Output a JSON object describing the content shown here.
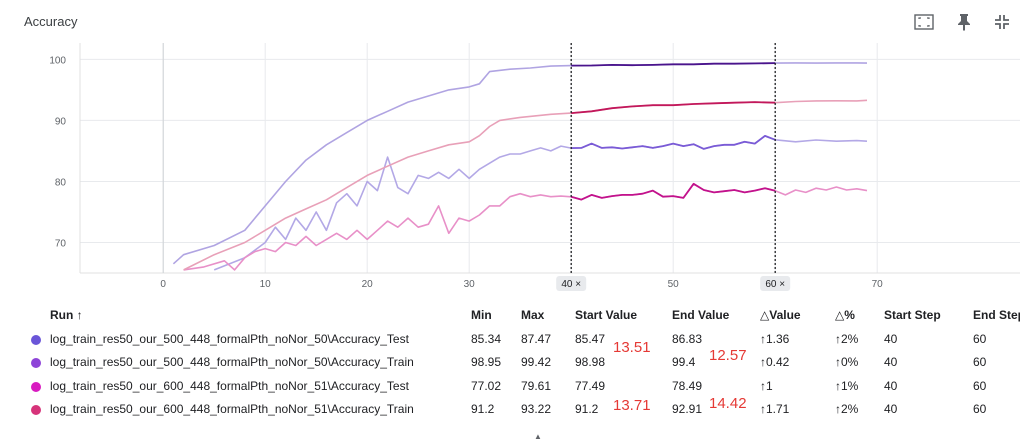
{
  "card": {
    "title": "Accuracy"
  },
  "toolbar": {
    "icons": [
      "fit-domain-icon",
      "pin-icon",
      "collapse-icon"
    ]
  },
  "chart_data": {
    "type": "line",
    "title": "",
    "xlabel": "",
    "ylabel": "",
    "xlim": [
      -16,
      84
    ],
    "ylim": [
      65,
      104
    ],
    "x_ticks": [
      0,
      10,
      20,
      30,
      40,
      50,
      60,
      70
    ],
    "y_ticks": [
      70,
      80,
      90,
      100
    ],
    "highlighted_x_ticks": [
      {
        "value": 40,
        "label": "40 ×"
      },
      {
        "value": 60,
        "label": "60 ×"
      }
    ],
    "range_selection": [
      40,
      60
    ],
    "series": [
      {
        "name": "log_train_res50_our_500_448_formalPth_noNor_50\\Accuracy_Test",
        "color": "#7a5bd6",
        "faded_color": "#b3a8e6",
        "points": [
          [
            5,
            65.5
          ],
          [
            8,
            67.5
          ],
          [
            10,
            70
          ],
          [
            11,
            72.5
          ],
          [
            12,
            70.5
          ],
          [
            13,
            74
          ],
          [
            14,
            72
          ],
          [
            15,
            75
          ],
          [
            16,
            72
          ],
          [
            17,
            76.5
          ],
          [
            18,
            78
          ],
          [
            19,
            76
          ],
          [
            20,
            80
          ],
          [
            21,
            78.5
          ],
          [
            22,
            84
          ],
          [
            23,
            79
          ],
          [
            24,
            78
          ],
          [
            25,
            81
          ],
          [
            26,
            80.5
          ],
          [
            27,
            81.5
          ],
          [
            28,
            80.5
          ],
          [
            29,
            82
          ],
          [
            30,
            80.5
          ],
          [
            31,
            82
          ],
          [
            32,
            83
          ],
          [
            33,
            84
          ],
          [
            34,
            84.5
          ],
          [
            35,
            84.5
          ],
          [
            36,
            85
          ],
          [
            37,
            85.5
          ],
          [
            38,
            85
          ],
          [
            39,
            85.8
          ],
          [
            40,
            85.47
          ],
          [
            41,
            85.5
          ],
          [
            42,
            86.2
          ],
          [
            43,
            85.5
          ],
          [
            44,
            85.6
          ],
          [
            45,
            85.4
          ],
          [
            46,
            85.6
          ],
          [
            47,
            85.8
          ],
          [
            48,
            85.5
          ],
          [
            49,
            85.8
          ],
          [
            50,
            86.2
          ],
          [
            51,
            85.8
          ],
          [
            52,
            86.1
          ],
          [
            53,
            85.34
          ],
          [
            54,
            85.8
          ],
          [
            55,
            86
          ],
          [
            56,
            86
          ],
          [
            57,
            86.5
          ],
          [
            58,
            86.2
          ],
          [
            59,
            87.47
          ],
          [
            60,
            86.83
          ],
          [
            62,
            86.5
          ],
          [
            64,
            86.8
          ],
          [
            66,
            86.6
          ],
          [
            68,
            86.7
          ],
          [
            69,
            86.6
          ]
        ]
      },
      {
        "name": "log_train_res50_our_500_448_formalPth_noNor_50\\Accuracy_Train",
        "color": "#4a148c",
        "faded_color": "#b0a4e2",
        "points": [
          [
            1,
            66.5
          ],
          [
            2,
            68
          ],
          [
            5,
            69.5
          ],
          [
            8,
            72
          ],
          [
            10,
            76
          ],
          [
            12,
            80
          ],
          [
            14,
            83.5
          ],
          [
            16,
            86
          ],
          [
            18,
            88
          ],
          [
            20,
            90
          ],
          [
            22,
            91.5
          ],
          [
            24,
            93
          ],
          [
            26,
            94
          ],
          [
            28,
            95
          ],
          [
            30,
            95.5
          ],
          [
            31,
            96
          ],
          [
            32,
            98
          ],
          [
            34,
            98.4
          ],
          [
            36,
            98.6
          ],
          [
            38,
            98.9
          ],
          [
            40,
            98.98
          ],
          [
            42,
            99
          ],
          [
            44,
            99.1
          ],
          [
            46,
            99.05
          ],
          [
            48,
            99.1
          ],
          [
            50,
            99.2
          ],
          [
            52,
            99.2
          ],
          [
            54,
            99.3
          ],
          [
            56,
            99.3
          ],
          [
            58,
            99.35
          ],
          [
            60,
            99.4
          ],
          [
            62,
            99.42
          ],
          [
            64,
            99.4
          ],
          [
            66,
            99.42
          ],
          [
            68,
            99.42
          ],
          [
            69,
            99.4
          ]
        ]
      },
      {
        "name": "log_train_res50_our_600_448_formalPth_noNor_51\\Accuracy_Test",
        "color": "#c2128c",
        "faded_color": "#e890c8",
        "points": [
          [
            2,
            65.5
          ],
          [
            4,
            66
          ],
          [
            6,
            67
          ],
          [
            7,
            65.5
          ],
          [
            8,
            67.5
          ],
          [
            9,
            68.5
          ],
          [
            10,
            69
          ],
          [
            11,
            68.5
          ],
          [
            12,
            70
          ],
          [
            13,
            69.5
          ],
          [
            14,
            71
          ],
          [
            15,
            69.5
          ],
          [
            16,
            70.5
          ],
          [
            17,
            71.5
          ],
          [
            18,
            70.5
          ],
          [
            19,
            72
          ],
          [
            20,
            70.5
          ],
          [
            21,
            72
          ],
          [
            22,
            73.5
          ],
          [
            23,
            72.5
          ],
          [
            24,
            74
          ],
          [
            25,
            72.5
          ],
          [
            26,
            73
          ],
          [
            27,
            76
          ],
          [
            28,
            71.5
          ],
          [
            29,
            74
          ],
          [
            30,
            73.5
          ],
          [
            31,
            74.5
          ],
          [
            32,
            76
          ],
          [
            33,
            76
          ],
          [
            34,
            77.5
          ],
          [
            35,
            78
          ],
          [
            36,
            77.5
          ],
          [
            37,
            77.8
          ],
          [
            38,
            77.5
          ],
          [
            39,
            77.6
          ],
          [
            40,
            77.49
          ],
          [
            41,
            77.02
          ],
          [
            42,
            77.8
          ],
          [
            43,
            77.3
          ],
          [
            44,
            77.6
          ],
          [
            45,
            77.8
          ],
          [
            46,
            77.8
          ],
          [
            47,
            78
          ],
          [
            48,
            78.5
          ],
          [
            49,
            77.5
          ],
          [
            50,
            77.6
          ],
          [
            51,
            77.3
          ],
          [
            52,
            79.61
          ],
          [
            53,
            78.6
          ],
          [
            54,
            78.2
          ],
          [
            55,
            78.4
          ],
          [
            56,
            78.6
          ],
          [
            57,
            78.2
          ],
          [
            58,
            78.5
          ],
          [
            59,
            78.9
          ],
          [
            60,
            78.49
          ],
          [
            61,
            77.8
          ],
          [
            62,
            78.6
          ],
          [
            63,
            78.2
          ],
          [
            64,
            78.9
          ],
          [
            65,
            78.6
          ],
          [
            66,
            79.1
          ],
          [
            67,
            78.6
          ],
          [
            68,
            78.8
          ],
          [
            69,
            78.5
          ]
        ]
      },
      {
        "name": "log_train_res50_our_600_448_formalPth_noNor_51\\Accuracy_Train",
        "color": "#c2185b",
        "faded_color": "#e8a0b8",
        "points": [
          [
            2,
            65.5
          ],
          [
            5,
            68
          ],
          [
            8,
            70
          ],
          [
            10,
            72
          ],
          [
            12,
            74
          ],
          [
            14,
            75.5
          ],
          [
            16,
            77
          ],
          [
            18,
            79
          ],
          [
            20,
            81
          ],
          [
            22,
            82.5
          ],
          [
            24,
            84
          ],
          [
            26,
            85
          ],
          [
            28,
            86
          ],
          [
            30,
            86.5
          ],
          [
            31,
            87.5
          ],
          [
            32,
            89
          ],
          [
            33,
            90
          ],
          [
            35,
            90.5
          ],
          [
            38,
            91
          ],
          [
            40,
            91.2
          ],
          [
            42,
            91.5
          ],
          [
            44,
            92
          ],
          [
            46,
            92.3
          ],
          [
            48,
            92.5
          ],
          [
            50,
            92.5
          ],
          [
            52,
            92.7
          ],
          [
            54,
            92.8
          ],
          [
            56,
            92.9
          ],
          [
            58,
            93
          ],
          [
            60,
            92.91
          ],
          [
            62,
            93.1
          ],
          [
            64,
            93.2
          ],
          [
            66,
            93.22
          ],
          [
            68,
            93.2
          ],
          [
            69,
            93.3
          ]
        ]
      }
    ]
  },
  "table": {
    "headers": {
      "run": "Run ↑",
      "min": "Min",
      "max": "Max",
      "start_value": "Start Value",
      "end_value": "End Value",
      "delta_value": "△Value",
      "delta_pct": "△%",
      "start_step": "Start Step",
      "end_step": "End Step"
    },
    "rows": [
      {
        "color": "#6a55d8",
        "run": "log_train_res50_our_500_448_formalPth_noNor_50\\Accuracy_Test",
        "min": "85.34",
        "max": "87.47",
        "start_value": "85.47",
        "end_value": "86.83",
        "delta_value": "↑1.36",
        "delta_pct": "↑2%",
        "start_step": "40",
        "end_step": "60"
      },
      {
        "color": "#8e44d8",
        "run": "log_train_res50_our_500_448_formalPth_noNor_50\\Accuracy_Train",
        "min": "98.95",
        "max": "99.42",
        "start_value": "98.98",
        "end_value": "99.4",
        "delta_value": "↑0.42",
        "delta_pct": "↑0%",
        "start_step": "40",
        "end_step": "60"
      },
      {
        "color": "#d81bc0",
        "run": "log_train_res50_our_600_448_formalPth_noNor_51\\Accuracy_Test",
        "min": "77.02",
        "max": "79.61",
        "start_value": "77.49",
        "end_value": "78.49",
        "delta_value": "↑1",
        "delta_pct": "↑1%",
        "start_step": "40",
        "end_step": "60"
      },
      {
        "color": "#d6337a",
        "run": "log_train_res50_our_600_448_formalPth_noNor_51\\Accuracy_Train",
        "min": "91.2",
        "max": "93.22",
        "start_value": "91.2",
        "end_value": "92.91",
        "delta_value": "↑1.71",
        "delta_pct": "↑2%",
        "start_step": "40",
        "end_step": "60"
      }
    ]
  },
  "annotations": [
    "13.51",
    "12.57",
    "13.71",
    "14.42"
  ]
}
